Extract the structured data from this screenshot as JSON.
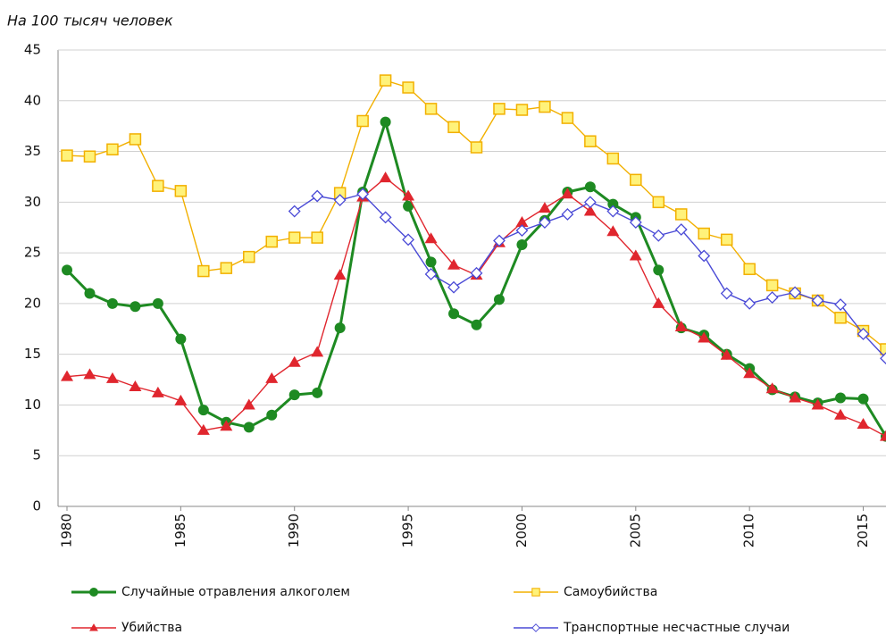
{
  "chart_data": {
    "type": "line",
    "unit_label": "На 100 тысяч человек",
    "x": [
      1980,
      1981,
      1982,
      1983,
      1984,
      1985,
      1986,
      1987,
      1988,
      1989,
      1990,
      1991,
      1992,
      1993,
      1994,
      1995,
      1996,
      1997,
      1998,
      1999,
      2000,
      2001,
      2002,
      2003,
      2004,
      2005,
      2006,
      2007,
      2008,
      2009,
      2010,
      2011,
      2012,
      2013,
      2014,
      2015,
      2016
    ],
    "xlim": [
      1980,
      2016
    ],
    "xticks": [
      1980,
      1985,
      1990,
      1995,
      2000,
      2005,
      2010,
      2015
    ],
    "ylim": [
      0,
      45
    ],
    "yticks": [
      0,
      5,
      10,
      15,
      20,
      25,
      30,
      35,
      40,
      45
    ],
    "grid": true,
    "legend": "bottom",
    "series": [
      {
        "name": "Случайные отравления алкоголем",
        "color": "#1e8a22",
        "marker": "circle",
        "values": [
          23.3,
          21,
          20,
          19.7,
          20,
          16.5,
          9.5,
          8.3,
          7.8,
          9,
          11,
          11.2,
          17.6,
          31,
          37.9,
          29.6,
          24.1,
          19,
          17.9,
          20.4,
          25.8,
          28.2,
          31,
          31.5,
          29.8,
          28.5,
          23.3,
          17.6,
          16.9,
          15,
          13.6,
          11.5,
          10.8,
          10.2,
          10.7,
          10.6,
          6.9
        ]
      },
      {
        "name": "Самоубийства",
        "color": "#f2b000",
        "marker": "square",
        "values": [
          34.6,
          34.5,
          35.2,
          36.2,
          31.6,
          31.1,
          23.2,
          23.5,
          24.6,
          26.1,
          26.5,
          26.5,
          30.9,
          38,
          42,
          41.3,
          39.2,
          37.4,
          35.4,
          39.2,
          39.1,
          39.4,
          38.3,
          36,
          34.3,
          32.2,
          30,
          28.8,
          26.9,
          26.3,
          23.4,
          21.8,
          21,
          20.3,
          18.6,
          17.3,
          15.5
        ]
      },
      {
        "name": "Убийства",
        "color": "#e0262e",
        "marker": "triangle",
        "values": [
          12.8,
          13,
          12.6,
          11.8,
          11.2,
          10.4,
          7.5,
          7.9,
          10,
          12.6,
          14.2,
          15.2,
          22.8,
          30.5,
          32.4,
          30.6,
          26.4,
          23.8,
          22.8,
          26,
          28,
          29.4,
          30.8,
          29.1,
          27.1,
          24.7,
          20,
          17.7,
          16.6,
          14.9,
          13.1,
          11.6,
          10.7,
          10,
          9,
          8.1,
          6.9
        ]
      },
      {
        "name": "Транспортные несчастные случаи",
        "color": "#4a4ad6",
        "marker": "diamond",
        "values": [
          null,
          null,
          null,
          null,
          null,
          null,
          null,
          null,
          null,
          null,
          29.1,
          30.6,
          30.2,
          30.8,
          28.5,
          26.3,
          22.9,
          21.6,
          23,
          26.2,
          27.2,
          28,
          28.8,
          30,
          29.1,
          28,
          26.7,
          27.3,
          24.7,
          21,
          20,
          20.6,
          21.1,
          20.3,
          19.9,
          17,
          14.6
        ]
      }
    ]
  }
}
